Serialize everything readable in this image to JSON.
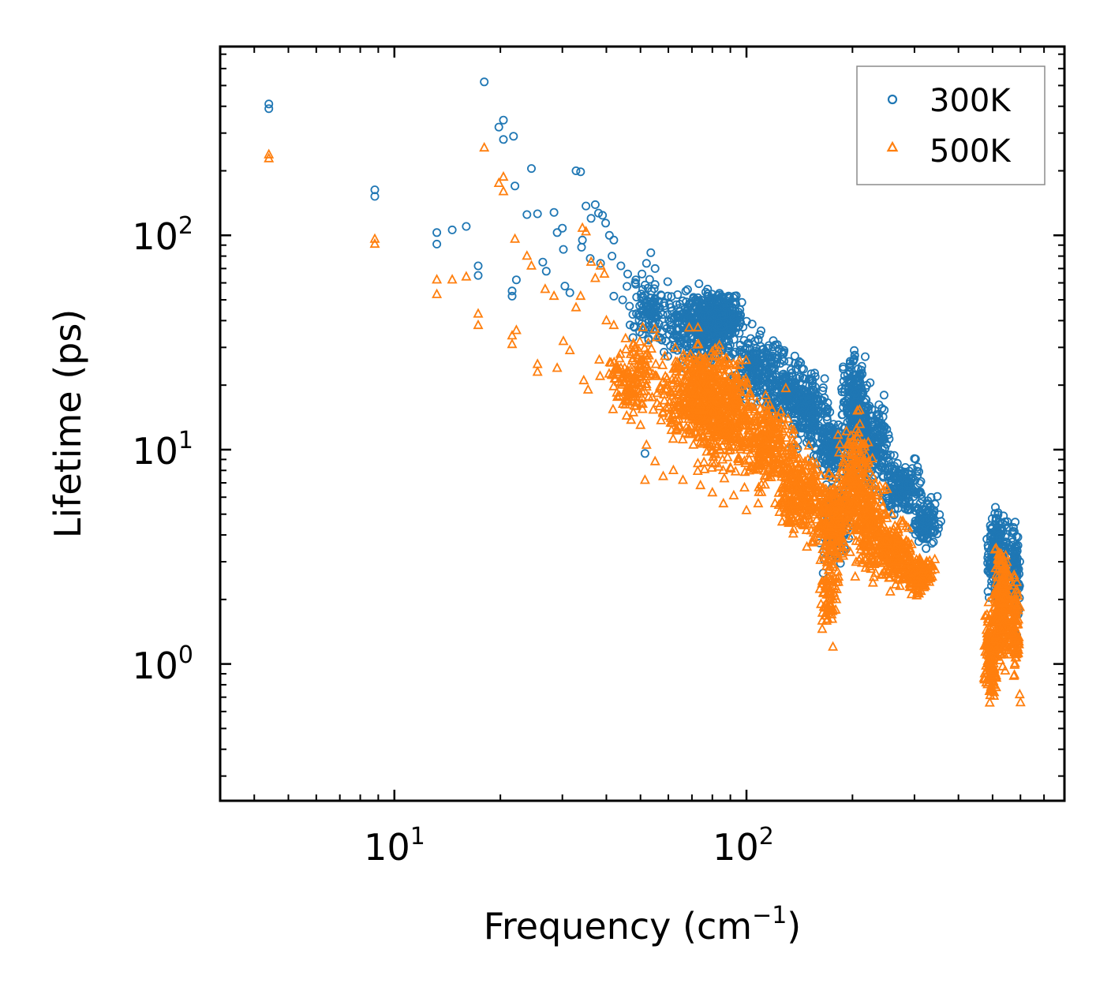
{
  "chart_data": {
    "type": "scatter",
    "xscale": "log",
    "yscale": "log",
    "xlim": [
      3.2,
      800
    ],
    "ylim": [
      0.23,
      760
    ],
    "xlabel_text": "Frequency (cm",
    "xlabel_sup": "−1",
    "xlabel_close": ")",
    "ylabel": "Lifetime (ps)",
    "x_ticks": [
      {
        "base": "10",
        "exp": "1"
      },
      {
        "base": "10",
        "exp": "2"
      }
    ],
    "y_ticks": [
      {
        "base": "10",
        "exp": "0"
      },
      {
        "base": "10",
        "exp": "1"
      },
      {
        "base": "10",
        "exp": "2"
      }
    ],
    "legend_position": "top-right",
    "series": [
      {
        "name": "300K",
        "marker": "circle",
        "color": "#1f77b4",
        "points": [
          [
            4.4,
            410
          ],
          [
            4.4,
            390
          ],
          [
            8.8,
            163
          ],
          [
            8.8,
            152
          ],
          [
            13.2,
            103
          ],
          [
            13.2,
            91
          ],
          [
            14.6,
            106
          ],
          [
            16.0,
            110
          ],
          [
            17.3,
            72
          ],
          [
            17.3,
            65
          ],
          [
            18.0,
            520
          ],
          [
            19.8,
            320
          ],
          [
            20.4,
            345
          ],
          [
            20.4,
            280
          ],
          [
            21.8,
            290
          ],
          [
            22.0,
            170
          ],
          [
            21.6,
            55
          ],
          [
            21.6,
            52
          ],
          [
            22.2,
            62
          ],
          [
            23.8,
            125
          ],
          [
            24.5,
            205
          ],
          [
            25.5,
            126
          ],
          [
            26.4,
            75
          ],
          [
            27.0,
            68
          ],
          [
            28.4,
            128
          ],
          [
            29.0,
            103
          ],
          [
            30.0,
            108
          ],
          [
            30.2,
            86
          ],
          [
            30.5,
            58
          ],
          [
            31.5,
            54
          ],
          [
            32.8,
            200
          ],
          [
            33.8,
            198
          ],
          [
            34.2,
            95
          ],
          [
            34.0,
            88
          ],
          [
            35.0,
            137
          ],
          [
            36.2,
            120
          ],
          [
            37.2,
            139
          ],
          [
            38.0,
            127
          ],
          [
            39.0,
            124
          ],
          [
            39.8,
            114
          ],
          [
            40.8,
            100
          ],
          [
            42.0,
            95
          ],
          [
            36.0,
            78
          ],
          [
            38.5,
            74
          ],
          [
            41.5,
            80
          ],
          [
            44.0,
            72
          ],
          [
            46.0,
            66
          ],
          [
            48.5,
            62
          ],
          [
            50.5,
            66
          ],
          [
            52.0,
            74
          ],
          [
            53.5,
            83
          ],
          [
            55.0,
            70
          ],
          [
            51.5,
            9.6
          ],
          [
            42.0,
            52
          ],
          [
            44.5,
            50
          ]
        ],
        "clusters": [
          {
            "x": [
              45,
              62
            ],
            "y": [
              28,
              70
            ],
            "n": 110
          },
          {
            "x": [
              58,
              95
            ],
            "y": [
              22,
              62
            ],
            "n": 360
          },
          {
            "x": [
              70,
              100
            ],
            "y": [
              30,
              58
            ],
            "n": 260
          },
          {
            "x": [
              90,
              130
            ],
            "y": [
              14,
              42
            ],
            "n": 200
          },
          {
            "x": [
              110,
              160
            ],
            "y": [
              11,
              33
            ],
            "n": 190
          },
          {
            "x": [
              130,
              175
            ],
            "y": [
              9,
              24
            ],
            "n": 160
          },
          {
            "x": [
              150,
              210
            ],
            "y": [
              7,
              16
            ],
            "n": 190
          },
          {
            "x": [
              160,
              200
            ],
            "y": [
              2.2,
              9
            ],
            "n": 110
          },
          {
            "x": [
              185,
              225
            ],
            "y": [
              9,
              31
            ],
            "n": 200
          },
          {
            "x": [
              200,
              260
            ],
            "y": [
              6,
              20
            ],
            "n": 180
          },
          {
            "x": [
              240,
              320
            ],
            "y": [
              4.5,
              10
            ],
            "n": 170
          },
          {
            "x": [
              290,
              360
            ],
            "y": [
              3.3,
              6.5
            ],
            "n": 120
          },
          {
            "x": [
              480,
              560
            ],
            "y": [
              1.6,
              6.3
            ],
            "n": 240
          },
          {
            "x": [
              560,
              600
            ],
            "y": [
              1.3,
              5.5
            ],
            "n": 90
          }
        ]
      },
      {
        "name": "500K",
        "marker": "triangle",
        "color": "#ff7f0e",
        "points": [
          [
            4.4,
            238
          ],
          [
            4.4,
            228
          ],
          [
            8.8,
            96
          ],
          [
            8.8,
            91
          ],
          [
            13.2,
            62
          ],
          [
            13.2,
            53
          ],
          [
            14.6,
            62
          ],
          [
            16.0,
            64
          ],
          [
            17.3,
            43
          ],
          [
            17.3,
            38
          ],
          [
            18.0,
            256
          ],
          [
            19.8,
            175
          ],
          [
            20.4,
            187
          ],
          [
            20.4,
            160
          ],
          [
            21.6,
            34
          ],
          [
            21.6,
            31
          ],
          [
            22.2,
            36
          ],
          [
            22.0,
            96
          ],
          [
            23.8,
            80
          ],
          [
            24.5,
            72
          ],
          [
            25.5,
            25
          ],
          [
            25.5,
            23
          ],
          [
            26.8,
            56
          ],
          [
            28.4,
            52
          ],
          [
            29.0,
            24
          ],
          [
            30.2,
            32
          ],
          [
            31.5,
            29
          ],
          [
            32.8,
            46
          ],
          [
            33.8,
            52
          ],
          [
            34.2,
            108
          ],
          [
            35.0,
            104
          ],
          [
            36.2,
            75
          ],
          [
            37.2,
            63
          ],
          [
            38.5,
            72
          ],
          [
            39.5,
            66
          ],
          [
            34.5,
            21
          ],
          [
            35.5,
            19
          ],
          [
            40.0,
            40
          ],
          [
            42.0,
            38
          ],
          [
            44.0,
            24
          ],
          [
            46.0,
            19
          ],
          [
            48.0,
            16
          ],
          [
            50.0,
            13
          ],
          [
            52.0,
            10.5
          ],
          [
            51.5,
            7.2
          ],
          [
            55.0,
            8.8
          ],
          [
            58.0,
            7.5
          ],
          [
            62.0,
            8.0
          ],
          [
            66.0,
            7.2
          ],
          [
            74.0,
            6.8
          ],
          [
            80.0,
            6.3
          ],
          [
            86.0,
            5.6
          ],
          [
            92.0,
            6.1
          ],
          [
            100.0,
            5.2
          ],
          [
            108.0,
            5.6
          ],
          [
            176.0,
            1.2
          ],
          [
            600.0,
            0.66
          ],
          [
            597.0,
            0.72
          ]
        ],
        "clusters": [
          {
            "x": [
              38,
              60
            ],
            "y": [
              12,
              40
            ],
            "n": 150
          },
          {
            "x": [
              55,
              100
            ],
            "y": [
              9,
              38
            ],
            "n": 460
          },
          {
            "x": [
              70,
              110
            ],
            "y": [
              6.5,
              30
            ],
            "n": 280
          },
          {
            "x": [
              95,
              140
            ],
            "y": [
              5.5,
              20
            ],
            "n": 230
          },
          {
            "x": [
              120,
              170
            ],
            "y": [
              3.2,
              12
            ],
            "n": 250
          },
          {
            "x": [
              155,
              200
            ],
            "y": [
              2.4,
              9
            ],
            "n": 220
          },
          {
            "x": [
              160,
              185
            ],
            "y": [
              1.3,
              3.5
            ],
            "n": 70
          },
          {
            "x": [
              180,
              230
            ],
            "y": [
              3.0,
              17
            ],
            "n": 220
          },
          {
            "x": [
              200,
              260
            ],
            "y": [
              2.0,
              9
            ],
            "n": 220
          },
          {
            "x": [
              240,
              300
            ],
            "y": [
              2.1,
              5
            ],
            "n": 170
          },
          {
            "x": [
              280,
              345
            ],
            "y": [
              2.0,
              3.5
            ],
            "n": 110
          },
          {
            "x": [
              470,
              520
            ],
            "y": [
              0.5,
              2.2
            ],
            "n": 130
          },
          {
            "x": [
              500,
              570
            ],
            "y": [
              0.8,
              4.1
            ],
            "n": 260
          },
          {
            "x": [
              560,
              600
            ],
            "y": [
              0.75,
              3.0
            ],
            "n": 100
          }
        ]
      }
    ]
  }
}
